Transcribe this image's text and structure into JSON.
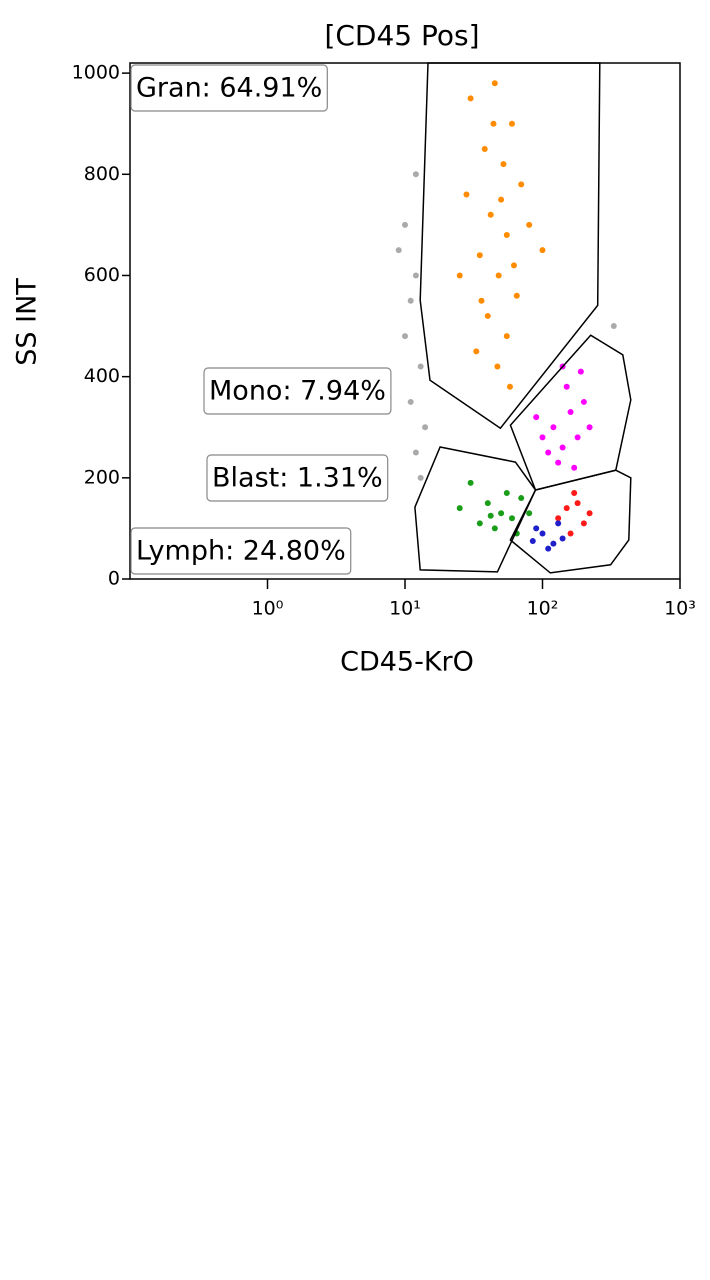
{
  "chart_data": {
    "type": "scatter",
    "title": "[CD45 Pos]",
    "x_label": "CD45-KrO",
    "y_label": "SS INT",
    "x_scale": "log",
    "xlim": [
      0.1,
      1000
    ],
    "xticks": [
      {
        "value": 1,
        "label": "10⁰"
      },
      {
        "value": 10,
        "label": "10¹"
      },
      {
        "value": 100,
        "label": "10²"
      },
      {
        "value": 1000,
        "label": "10³"
      }
    ],
    "ylim": [
      0,
      1020
    ],
    "yticks": [
      0,
      200,
      400,
      600,
      800,
      1000
    ],
    "series": [
      {
        "color": "#aaaaaa",
        "x": [
          11,
          12,
          10,
          13,
          11,
          12,
          10,
          14,
          9,
          12,
          13,
          330
        ],
        "y": [
          550,
          600,
          480,
          420,
          350,
          250,
          700,
          300,
          650,
          800,
          200,
          500
        ]
      },
      {
        "color": "#ff8c00",
        "x": [
          30,
          45,
          60,
          38,
          52,
          70,
          28,
          42,
          55,
          35,
          48,
          65,
          40,
          55,
          33,
          47,
          80,
          25,
          100,
          58,
          44,
          36,
          62,
          50
        ],
        "y": [
          950,
          980,
          900,
          850,
          820,
          780,
          760,
          720,
          680,
          640,
          600,
          560,
          520,
          480,
          450,
          420,
          700,
          600,
          650,
          380,
          900,
          550,
          620,
          750
        ]
      },
      {
        "color": "#ff00ff",
        "x": [
          140,
          120,
          160,
          100,
          180,
          150,
          200,
          130,
          90,
          170,
          220,
          140,
          110,
          190
        ],
        "y": [
          260,
          300,
          330,
          280,
          280,
          380,
          350,
          230,
          320,
          220,
          300,
          420,
          250,
          410
        ]
      },
      {
        "color": "#1a9e1a",
        "x": [
          50,
          40,
          60,
          35,
          70,
          30,
          45,
          55,
          25,
          65,
          80,
          42
        ],
        "y": [
          130,
          150,
          120,
          110,
          160,
          190,
          100,
          170,
          140,
          90,
          130,
          125
        ]
      },
      {
        "color": "#ff1a1a",
        "x": [
          150,
          180,
          130,
          200,
          170,
          220,
          160
        ],
        "y": [
          140,
          150,
          120,
          110,
          170,
          130,
          90
        ]
      },
      {
        "color": "#1f1fcc",
        "x": [
          100,
          120,
          90,
          140,
          110,
          130,
          85
        ],
        "y": [
          90,
          70,
          100,
          80,
          60,
          110,
          75
        ]
      }
    ],
    "gates": [
      {
        "label": "Gran: 64.91%",
        "x": [
          14.7,
          12.9,
          15.2,
          49.4,
          252,
          261
        ],
        "y": [
          1020,
          551,
          393,
          298,
          541,
          1020
        ]
      },
      {
        "label": "Mono: 7.94%",
        "x": [
          58.4,
          224,
          384,
          439,
          341,
          88.9
        ],
        "y": [
          304,
          482,
          443,
          354,
          215,
          176
        ]
      },
      {
        "label": "Blast: 1.31%",
        "x": [
          11.8,
          18,
          63.5,
          88.9,
          47,
          12.9
        ],
        "y": [
          142,
          261,
          231,
          176,
          14,
          18
        ]
      },
      {
        "label": "Lymph: 24.80%",
        "x": [
          58.4,
          88.9,
          341,
          439,
          424,
          313,
          114
        ],
        "y": [
          77,
          176,
          215,
          200,
          77,
          28,
          12
        ]
      }
    ]
  }
}
